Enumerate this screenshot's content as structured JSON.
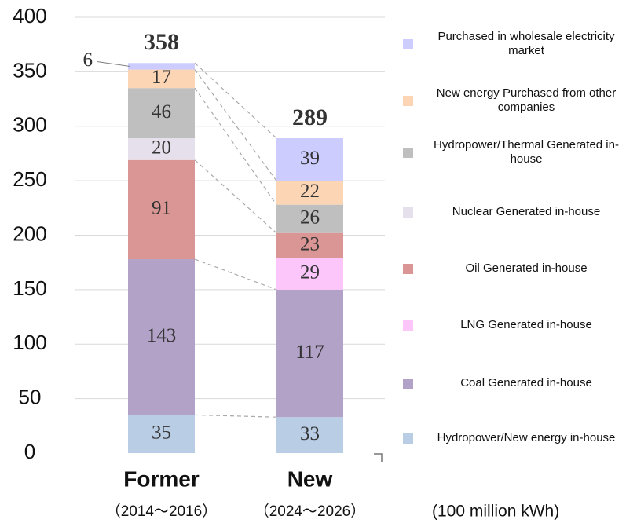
{
  "chart_data": {
    "type": "stacked_bar",
    "categories": [
      "Former",
      "New"
    ],
    "subcategories": [
      "（2014～2016）",
      "（2024～2026）"
    ],
    "unit": "(100 million kWh)",
    "ylim": [
      0,
      400
    ],
    "yticks": [
      0,
      50,
      100,
      150,
      200,
      250,
      300,
      350,
      400
    ],
    "grid": true,
    "totals": [
      358,
      289
    ],
    "series": [
      {
        "name": "Hydropower/New energy in-house",
        "color": "#b9cde5",
        "values": [
          35,
          33
        ]
      },
      {
        "name": "Coal Generated in-house",
        "color": "#b3a2c7",
        "values": [
          143,
          117
        ]
      },
      {
        "name": "LNG Generated in-house",
        "color": "#fcc6fb",
        "values": [
          null,
          29
        ]
      },
      {
        "name": "Oil Generated in-house",
        "color": "#d99694",
        "values": [
          91,
          23
        ]
      },
      {
        "name": "Nuclear Generated in-house",
        "color": "#e6e0ec",
        "values": [
          20,
          null
        ]
      },
      {
        "name": "Hydropower/Thermal Generated in-house",
        "color": "#bfbfbf",
        "values": [
          46,
          26
        ]
      },
      {
        "name": "New energy Purchased from other companies",
        "color": "#fcd5b5",
        "values": [
          17,
          22
        ]
      },
      {
        "name": "Purchased in wholesale electricity market",
        "color": "#ccccff",
        "values": [
          6,
          39
        ]
      }
    ]
  }
}
